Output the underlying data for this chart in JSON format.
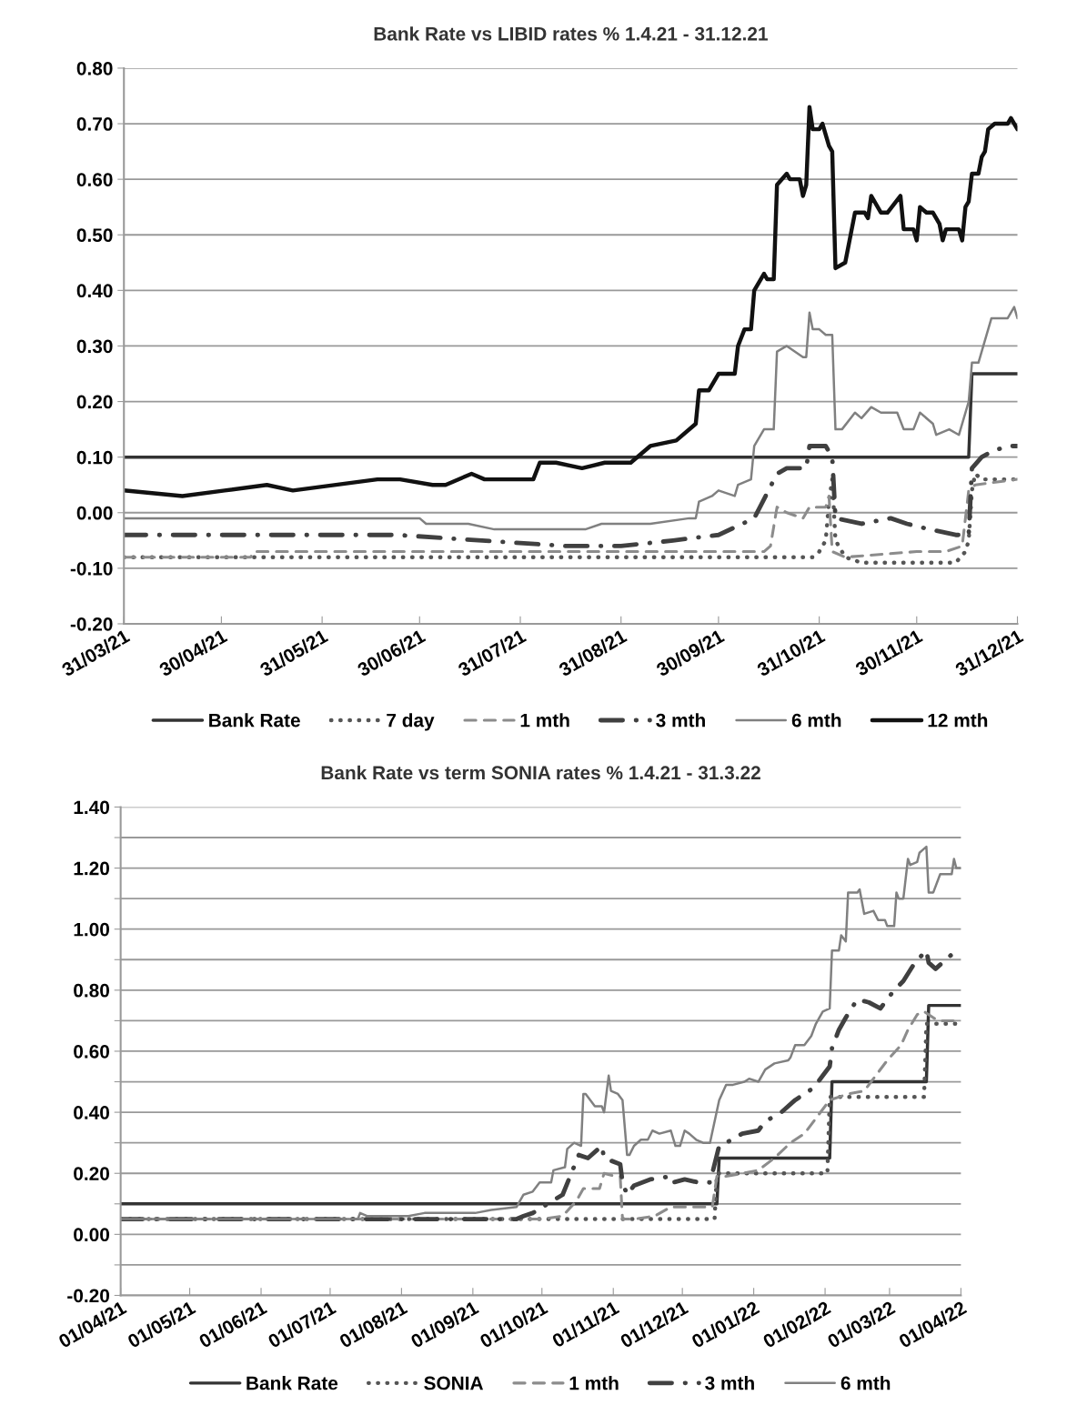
{
  "chart_data": [
    {
      "type": "line",
      "title": "Bank Rate vs LIBID rates % 1.4.21 - 31.12.21",
      "grid": "y",
      "legend": "bottom",
      "xlim": [
        "2021-03-31",
        "2021-12-31"
      ],
      "xticks": [
        {
          "value": "2021-03-31",
          "label": "31/03/21"
        },
        {
          "value": "2021-04-30",
          "label": "30/04/21"
        },
        {
          "value": "2021-05-31",
          "label": "31/05/21"
        },
        {
          "value": "2021-06-30",
          "label": "30/06/21"
        },
        {
          "value": "2021-07-31",
          "label": "31/07/21"
        },
        {
          "value": "2021-08-31",
          "label": "31/08/21"
        },
        {
          "value": "2021-09-30",
          "label": "30/09/21"
        },
        {
          "value": "2021-10-31",
          "label": "31/10/21"
        },
        {
          "value": "2021-11-30",
          "label": "30/11/21"
        },
        {
          "value": "2021-12-31",
          "label": "31/12/21"
        }
      ],
      "ylim": [
        -0.2,
        0.8
      ],
      "yticks": [
        {
          "value": -0.2,
          "label": "-0.20"
        },
        {
          "value": -0.1,
          "label": "-0.10"
        },
        {
          "value": 0,
          "label": "0.00"
        },
        {
          "value": 0.1,
          "label": "0.10"
        },
        {
          "value": 0.2,
          "label": "0.20"
        },
        {
          "value": 0.3,
          "label": "0.30"
        },
        {
          "value": 0.4,
          "label": "0.40"
        },
        {
          "value": 0.5,
          "label": "0.50"
        },
        {
          "value": 0.6,
          "label": "0.60"
        },
        {
          "value": 0.7,
          "label": "0.70"
        },
        {
          "value": 0.8,
          "label": "0.80"
        }
      ],
      "series": [
        {
          "name": "Bank Rate",
          "color": "#333333",
          "line_style": "solid",
          "x": [
            "2021-03-31",
            "2021-12-16",
            "2021-12-17",
            "2021-12-31"
          ],
          "values": [
            0.1,
            0.1,
            0.25,
            0.25
          ]
        },
        {
          "name": "7 day",
          "color": "#555555",
          "line_style": "dotted",
          "x": [
            "2021-03-31",
            "2021-10-25",
            "2021-10-29",
            "2021-10-31",
            "2021-11-02",
            "2021-11-03",
            "2021-11-04",
            "2021-11-05",
            "2021-11-08",
            "2021-11-13",
            "2021-12-12",
            "2021-12-15",
            "2021-12-16",
            "2021-12-17",
            "2021-12-18",
            "2021-12-20",
            "2021-12-31"
          ],
          "values": [
            -0.08,
            -0.08,
            -0.08,
            -0.07,
            -0.05,
            0.02,
            0.06,
            -0.05,
            -0.08,
            -0.09,
            -0.09,
            -0.07,
            -0.05,
            0.04,
            0.07,
            0.06,
            0.06
          ]
        },
        {
          "name": "1 mth",
          "color": "#8c8c8c",
          "line_style": "dashed",
          "x": [
            "2021-03-31",
            "2021-05-09",
            "2021-05-10",
            "2021-10-14",
            "2021-10-16",
            "2021-10-18",
            "2021-10-21",
            "2021-10-26",
            "2021-10-28",
            "2021-11-02",
            "2021-11-03",
            "2021-11-04",
            "2021-11-08",
            "2021-11-30",
            "2021-12-09",
            "2021-12-14",
            "2021-12-16",
            "2021-12-18",
            "2021-12-31"
          ],
          "values": [
            -0.08,
            -0.08,
            -0.07,
            -0.07,
            -0.06,
            0.01,
            0.0,
            -0.01,
            0.01,
            0.01,
            0.03,
            -0.07,
            -0.08,
            -0.07,
            -0.07,
            -0.06,
            0.04,
            0.05,
            0.06
          ]
        },
        {
          "name": "3 mth",
          "color": "#404040",
          "line_style": "dashdot",
          "x": [
            "2021-03-31",
            "2021-06-23",
            "2021-08-14",
            "2021-08-31",
            "2021-09-16",
            "2021-09-30",
            "2021-10-11",
            "2021-10-18",
            "2021-10-21",
            "2021-10-27",
            "2021-10-28",
            "2021-11-02",
            "2021-11-04",
            "2021-11-05",
            "2021-11-13",
            "2021-11-22",
            "2021-11-27",
            "2021-12-04",
            "2021-12-12",
            "2021-12-16",
            "2021-12-17",
            "2021-12-20",
            "2021-12-23",
            "2021-12-28",
            "2021-12-31"
          ],
          "values": [
            -0.04,
            -0.04,
            -0.06,
            -0.06,
            -0.05,
            -0.04,
            -0.01,
            0.07,
            0.08,
            0.08,
            0.12,
            0.12,
            0.1,
            -0.01,
            -0.02,
            -0.01,
            -0.02,
            -0.03,
            -0.04,
            -0.04,
            0.08,
            0.1,
            0.11,
            0.12,
            0.12
          ]
        },
        {
          "name": "6 mth",
          "color": "#808080",
          "line_style": "solid",
          "x": [
            "2021-03-31",
            "2021-06-30",
            "2021-07-02",
            "2021-07-15",
            "2021-07-23",
            "2021-08-20",
            "2021-08-25",
            "2021-09-09",
            "2021-09-21",
            "2021-09-23",
            "2021-09-24",
            "2021-09-28",
            "2021-09-30",
            "2021-10-05",
            "2021-10-06",
            "2021-10-10",
            "2021-10-11",
            "2021-10-14",
            "2021-10-17",
            "2021-10-18",
            "2021-10-21",
            "2021-10-26",
            "2021-10-27",
            "2021-10-28",
            "2021-10-29",
            "2021-10-31",
            "2021-11-02",
            "2021-11-04",
            "2021-11-05",
            "2021-11-07",
            "2021-11-11",
            "2021-11-13",
            "2021-11-16",
            "2021-11-19",
            "2021-11-24",
            "2021-11-26",
            "2021-11-29",
            "2021-12-01",
            "2021-12-05",
            "2021-12-06",
            "2021-12-10",
            "2021-12-13",
            "2021-12-16",
            "2021-12-17",
            "2021-12-19",
            "2021-12-23",
            "2021-12-28",
            "2021-12-30",
            "2021-12-31"
          ],
          "values": [
            -0.01,
            -0.01,
            -0.02,
            -0.02,
            -0.03,
            -0.03,
            -0.02,
            -0.02,
            -0.01,
            -0.01,
            0.02,
            0.03,
            0.04,
            0.03,
            0.05,
            0.06,
            0.12,
            0.15,
            0.15,
            0.29,
            0.3,
            0.28,
            0.28,
            0.36,
            0.33,
            0.33,
            0.32,
            0.32,
            0.15,
            0.15,
            0.18,
            0.17,
            0.19,
            0.18,
            0.18,
            0.15,
            0.15,
            0.18,
            0.16,
            0.14,
            0.15,
            0.14,
            0.2,
            0.27,
            0.27,
            0.35,
            0.35,
            0.37,
            0.35
          ]
        },
        {
          "name": "12 mth",
          "color": "#111111",
          "line_style": "solid",
          "x": [
            "2021-03-31",
            "2021-04-18",
            "2021-05-01",
            "2021-05-14",
            "2021-05-22",
            "2021-06-17",
            "2021-06-24",
            "2021-07-04",
            "2021-07-08",
            "2021-07-16",
            "2021-07-20",
            "2021-07-27",
            "2021-08-04",
            "2021-08-06",
            "2021-08-11",
            "2021-08-19",
            "2021-08-26",
            "2021-09-01",
            "2021-09-03",
            "2021-09-09",
            "2021-09-17",
            "2021-09-23",
            "2021-09-24",
            "2021-09-27",
            "2021-09-30",
            "2021-10-05",
            "2021-10-06",
            "2021-10-08",
            "2021-10-10",
            "2021-10-11",
            "2021-10-14",
            "2021-10-15",
            "2021-10-17",
            "2021-10-18",
            "2021-10-21",
            "2021-10-22",
            "2021-10-25",
            "2021-10-26",
            "2021-10-27",
            "2021-10-28",
            "2021-10-29",
            "2021-10-31",
            "2021-11-01",
            "2021-11-03",
            "2021-11-04",
            "2021-11-05",
            "2021-11-08",
            "2021-11-11",
            "2021-11-14",
            "2021-11-15",
            "2021-11-16",
            "2021-11-19",
            "2021-11-21",
            "2021-11-25",
            "2021-11-26",
            "2021-11-29",
            "2021-11-30",
            "2021-12-01",
            "2021-12-03",
            "2021-12-05",
            "2021-12-07",
            "2021-12-08",
            "2021-12-09",
            "2021-12-13",
            "2021-12-14",
            "2021-12-15",
            "2021-12-16",
            "2021-12-17",
            "2021-12-19",
            "2021-12-20",
            "2021-12-21",
            "2021-12-22",
            "2021-12-24",
            "2021-12-28",
            "2021-12-29",
            "2021-12-31"
          ],
          "values": [
            0.04,
            0.03,
            0.04,
            0.05,
            0.04,
            0.06,
            0.06,
            0.05,
            0.05,
            0.07,
            0.06,
            0.06,
            0.06,
            0.09,
            0.09,
            0.08,
            0.09,
            0.09,
            0.09,
            0.12,
            0.13,
            0.16,
            0.22,
            0.22,
            0.25,
            0.25,
            0.3,
            0.33,
            0.33,
            0.4,
            0.43,
            0.42,
            0.42,
            0.59,
            0.61,
            0.6,
            0.6,
            0.57,
            0.59,
            0.73,
            0.69,
            0.69,
            0.7,
            0.66,
            0.65,
            0.44,
            0.45,
            0.54,
            0.54,
            0.53,
            0.57,
            0.54,
            0.54,
            0.57,
            0.51,
            0.51,
            0.49,
            0.55,
            0.54,
            0.54,
            0.52,
            0.49,
            0.51,
            0.51,
            0.49,
            0.55,
            0.56,
            0.61,
            0.61,
            0.64,
            0.65,
            0.69,
            0.7,
            0.7,
            0.71,
            0.69
          ]
        }
      ]
    },
    {
      "type": "line",
      "title": "Bank Rate vs term SONIA rates % 1.4.21 - 31.3.22",
      "grid": "y",
      "legend": "bottom",
      "xlim": [
        "2021-04-01",
        "2022-04-01"
      ],
      "xticks": [
        {
          "value": "2021-04-01",
          "label": "01/04/21"
        },
        {
          "value": "2021-05-01",
          "label": "01/05/21"
        },
        {
          "value": "2021-06-01",
          "label": "01/06/21"
        },
        {
          "value": "2021-07-01",
          "label": "01/07/21"
        },
        {
          "value": "2021-08-01",
          "label": "01/08/21"
        },
        {
          "value": "2021-09-01",
          "label": "01/09/21"
        },
        {
          "value": "2021-10-01",
          "label": "01/10/21"
        },
        {
          "value": "2021-11-01",
          "label": "01/11/21"
        },
        {
          "value": "2021-12-01",
          "label": "01/12/21"
        },
        {
          "value": "2022-01-01",
          "label": "01/01/22"
        },
        {
          "value": "2022-02-01",
          "label": "01/02/22"
        },
        {
          "value": "2022-03-01",
          "label": "01/03/22"
        },
        {
          "value": "2022-04-01",
          "label": "01/04/22"
        }
      ],
      "ylim": [
        -0.2,
        1.4
      ],
      "yticks": [
        {
          "value": -0.2,
          "label": "-0.20"
        },
        {
          "value": -0.1,
          "label": null
        },
        {
          "value": 0,
          "label": "0.00"
        },
        {
          "value": 0.1,
          "label": null
        },
        {
          "value": 0.2,
          "label": "0.20"
        },
        {
          "value": 0.3,
          "label": null
        },
        {
          "value": 0.4,
          "label": "0.40"
        },
        {
          "value": 0.5,
          "label": null
        },
        {
          "value": 0.6,
          "label": "0.60"
        },
        {
          "value": 0.7,
          "label": null
        },
        {
          "value": 0.8,
          "label": "0.80"
        },
        {
          "value": 0.9,
          "label": null
        },
        {
          "value": 1.0,
          "label": "1.00"
        },
        {
          "value": 1.1,
          "label": null
        },
        {
          "value": 1.2,
          "label": "1.20"
        },
        {
          "value": 1.3,
          "label": null
        },
        {
          "value": 1.4,
          "label": "1.40"
        }
      ],
      "series": [
        {
          "name": "Bank Rate",
          "color": "#333333",
          "line_style": "solid",
          "x": [
            "2021-04-01",
            "2021-12-16",
            "2021-12-17",
            "2022-02-03",
            "2022-02-04",
            "2022-03-17",
            "2022-03-18",
            "2022-04-01"
          ],
          "values": [
            0.1,
            0.1,
            0.25,
            0.25,
            0.5,
            0.5,
            0.75,
            0.75
          ]
        },
        {
          "name": "SONIA",
          "color": "#555555",
          "line_style": "dotted",
          "x": [
            "2021-04-01",
            "2021-12-15",
            "2021-12-16",
            "2022-02-02",
            "2022-02-03",
            "2022-03-16",
            "2022-03-17",
            "2022-04-01"
          ],
          "values": [
            0.05,
            0.05,
            0.2,
            0.2,
            0.45,
            0.45,
            0.69,
            0.69
          ]
        },
        {
          "name": "1 mth",
          "color": "#8c8c8c",
          "line_style": "dashed",
          "x": [
            "2021-04-01",
            "2021-10-01",
            "2021-10-10",
            "2021-10-16",
            "2021-10-19",
            "2021-10-26",
            "2021-10-28",
            "2021-11-02",
            "2021-11-04",
            "2021-11-05",
            "2021-11-10",
            "2021-11-19",
            "2021-11-26",
            "2021-12-14",
            "2021-12-16",
            "2021-12-20",
            "2022-01-03",
            "2022-01-10",
            "2022-01-17",
            "2022-01-23",
            "2022-01-29",
            "2022-02-03",
            "2022-02-11",
            "2022-02-18",
            "2022-02-23",
            "2022-02-28",
            "2022-03-06",
            "2022-03-09",
            "2022-03-13",
            "2022-03-16",
            "2022-03-22",
            "2022-04-01"
          ],
          "values": [
            0.05,
            0.05,
            0.06,
            0.11,
            0.15,
            0.15,
            0.2,
            0.19,
            0.19,
            0.05,
            0.05,
            0.06,
            0.09,
            0.09,
            0.19,
            0.19,
            0.21,
            0.25,
            0.3,
            0.33,
            0.39,
            0.44,
            0.46,
            0.47,
            0.52,
            0.57,
            0.62,
            0.67,
            0.72,
            0.73,
            0.7,
            0.7
          ]
        },
        {
          "name": "3 mth",
          "color": "#404040",
          "line_style": "dashdot",
          "x": [
            "2021-04-01",
            "2021-09-20",
            "2021-09-23",
            "2021-09-27",
            "2021-10-10",
            "2021-10-17",
            "2021-10-21",
            "2021-10-27",
            "2021-10-28",
            "2021-11-04",
            "2021-11-05",
            "2021-11-07",
            "2021-11-10",
            "2021-11-17",
            "2021-11-26",
            "2021-11-27",
            "2021-12-02",
            "2021-12-08",
            "2021-12-13",
            "2021-12-17",
            "2021-12-20",
            "2021-12-27",
            "2022-01-03",
            "2022-01-06",
            "2022-01-13",
            "2022-01-19",
            "2022-01-27",
            "2022-01-31",
            "2022-02-03",
            "2022-02-04",
            "2022-02-07",
            "2022-02-10",
            "2022-02-15",
            "2022-02-20",
            "2022-02-25",
            "2022-02-28",
            "2022-03-03",
            "2022-03-07",
            "2022-03-12",
            "2022-03-17",
            "2022-03-18",
            "2022-03-21",
            "2022-03-27",
            "2022-03-30",
            "2022-04-01"
          ],
          "values": [
            0.05,
            0.05,
            0.06,
            0.07,
            0.13,
            0.26,
            0.25,
            0.29,
            0.25,
            0.23,
            0.17,
            0.13,
            0.16,
            0.18,
            0.19,
            0.17,
            0.18,
            0.17,
            0.17,
            0.29,
            0.3,
            0.33,
            0.34,
            0.37,
            0.4,
            0.44,
            0.48,
            0.52,
            0.55,
            0.61,
            0.67,
            0.71,
            0.77,
            0.76,
            0.74,
            0.77,
            0.8,
            0.83,
            0.89,
            0.93,
            0.89,
            0.87,
            0.91,
            0.93,
            0.93
          ]
        },
        {
          "name": "6 mth",
          "color": "#808080",
          "line_style": "solid",
          "x": [
            "2021-04-01",
            "2021-07-13",
            "2021-07-14",
            "2021-07-17",
            "2021-08-04",
            "2021-08-11",
            "2021-09-02",
            "2021-09-09",
            "2021-09-20",
            "2021-09-23",
            "2021-09-27",
            "2021-09-30",
            "2021-10-05",
            "2021-10-06",
            "2021-10-11",
            "2021-10-12",
            "2021-10-15",
            "2021-10-18",
            "2021-10-19",
            "2021-10-20",
            "2021-10-24",
            "2021-10-27",
            "2021-10-28",
            "2021-10-30",
            "2021-10-31",
            "2021-11-03",
            "2021-11-05",
            "2021-11-07",
            "2021-11-08",
            "2021-11-10",
            "2021-11-13",
            "2021-11-16",
            "2021-11-18",
            "2021-11-21",
            "2021-11-26",
            "2021-11-28",
            "2021-11-30",
            "2021-12-02",
            "2021-12-04",
            "2021-12-07",
            "2021-12-10",
            "2021-12-13",
            "2021-12-17",
            "2021-12-20",
            "2021-12-23",
            "2021-12-28",
            "2021-12-30",
            "2022-01-03",
            "2022-01-06",
            "2022-01-10",
            "2022-01-16",
            "2022-01-17",
            "2022-01-19",
            "2022-01-23",
            "2022-01-26",
            "2022-01-28",
            "2022-01-31",
            "2022-02-03",
            "2022-02-04",
            "2022-02-07",
            "2022-02-08",
            "2022-02-10",
            "2022-02-11",
            "2022-02-15",
            "2022-02-16",
            "2022-02-18",
            "2022-02-22",
            "2022-02-24",
            "2022-02-27",
            "2022-02-28",
            "2022-03-03",
            "2022-03-04",
            "2022-03-05",
            "2022-03-07",
            "2022-03-09",
            "2022-03-10",
            "2022-03-13",
            "2022-03-14",
            "2022-03-17",
            "2022-03-18",
            "2022-03-20",
            "2022-03-23",
            "2022-03-25",
            "2022-03-28",
            "2022-03-29",
            "2022-03-30",
            "2022-04-01"
          ],
          "values": [
            0.05,
            0.05,
            0.07,
            0.06,
            0.06,
            0.07,
            0.07,
            0.08,
            0.09,
            0.13,
            0.14,
            0.17,
            0.17,
            0.21,
            0.22,
            0.28,
            0.3,
            0.29,
            0.46,
            0.46,
            0.42,
            0.42,
            0.4,
            0.52,
            0.47,
            0.46,
            0.44,
            0.26,
            0.26,
            0.29,
            0.31,
            0.31,
            0.34,
            0.33,
            0.34,
            0.29,
            0.29,
            0.34,
            0.33,
            0.31,
            0.3,
            0.3,
            0.44,
            0.49,
            0.49,
            0.5,
            0.51,
            0.5,
            0.54,
            0.56,
            0.57,
            0.58,
            0.62,
            0.62,
            0.65,
            0.69,
            0.73,
            0.74,
            0.93,
            0.93,
            0.98,
            0.96,
            1.12,
            1.12,
            1.13,
            1.05,
            1.06,
            1.03,
            1.03,
            1.01,
            1.01,
            1.12,
            1.1,
            1.1,
            1.23,
            1.21,
            1.22,
            1.25,
            1.27,
            1.12,
            1.12,
            1.18,
            1.18,
            1.18,
            1.23,
            1.2,
            1.2
          ]
        }
      ]
    }
  ]
}
